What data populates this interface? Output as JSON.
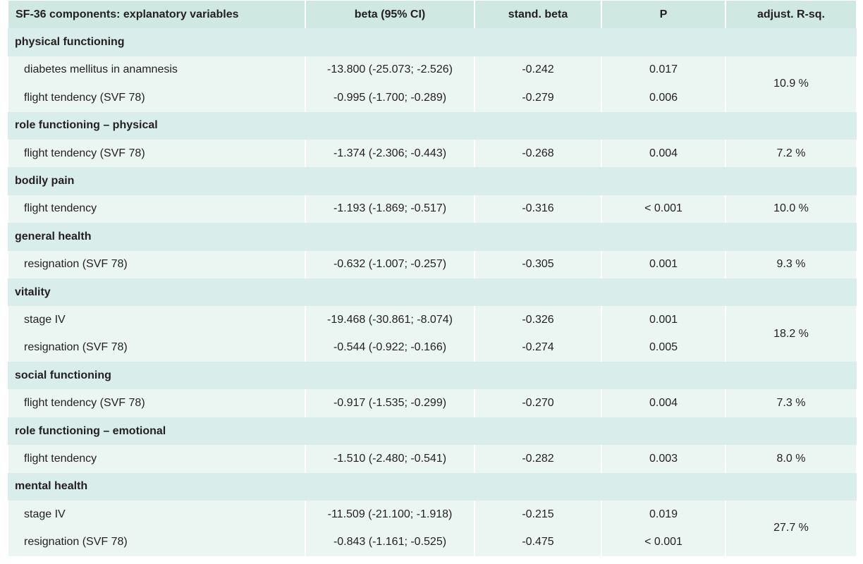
{
  "header": [
    "SF-36 components: explanatory variables",
    "beta (95% CI)",
    "stand. beta",
    "P",
    "adjust. R-sq."
  ],
  "groups": [
    {
      "title": "physical functioning",
      "rows": [
        [
          "diabetes mellitus in anamnesis",
          "-13.800 (-25.073; -2.526)",
          "-0.242",
          "0.017"
        ],
        [
          "flight tendency (SVF 78)",
          "-0.995 (-1.700; -0.289)",
          "-0.279",
          "0.006"
        ]
      ],
      "r_sq": "10.9 %"
    },
    {
      "title": "role functioning – physical",
      "rows": [
        [
          "flight tendency (SVF 78)",
          "-1.374 (-2.306; -0.443)",
          "-0.268",
          "0.004"
        ]
      ],
      "r_sq": "7.2 %"
    },
    {
      "title": "bodily pain",
      "rows": [
        [
          "flight tendency",
          "-1.193 (-1.869; -0.517)",
          "-0.316",
          "< 0.001"
        ]
      ],
      "r_sq": "10.0 %"
    },
    {
      "title": "general health",
      "rows": [
        [
          "resignation (SVF 78)",
          "-0.632 (-1.007; -0.257)",
          "-0.305",
          "0.001"
        ]
      ],
      "r_sq": "9.3 %"
    },
    {
      "title": "vitality",
      "rows": [
        [
          "stage IV",
          "-19.468 (-30.861; -8.074)",
          "-0.326",
          "0.001"
        ],
        [
          "resignation (SVF 78)",
          "-0.544 (-0.922; -0.166)",
          "-0.274",
          "0.005"
        ]
      ],
      "r_sq": "18.2 %"
    },
    {
      "title": "social functioning",
      "rows": [
        [
          "flight tendency (SVF 78)",
          "-0.917 (-1.535; -0.299)",
          "-0.270",
          "0.004"
        ]
      ],
      "r_sq": "7.3 %"
    },
    {
      "title": "role functioning – emotional",
      "rows": [
        [
          "flight tendency",
          "-1.510 (-2.480; -0.541)",
          "-0.282",
          "0.003"
        ]
      ],
      "r_sq": "8.0 %"
    },
    {
      "title": "mental health",
      "rows": [
        [
          "stage IV",
          "-11.509 (-21.100; -1.918)",
          "-0.215",
          "0.019"
        ],
        [
          "resignation (SVF 78)",
          "-0.843 (-1.161; -0.525)",
          "-0.475",
          "< 0.001"
        ]
      ],
      "r_sq": "27.7 %"
    }
  ]
}
